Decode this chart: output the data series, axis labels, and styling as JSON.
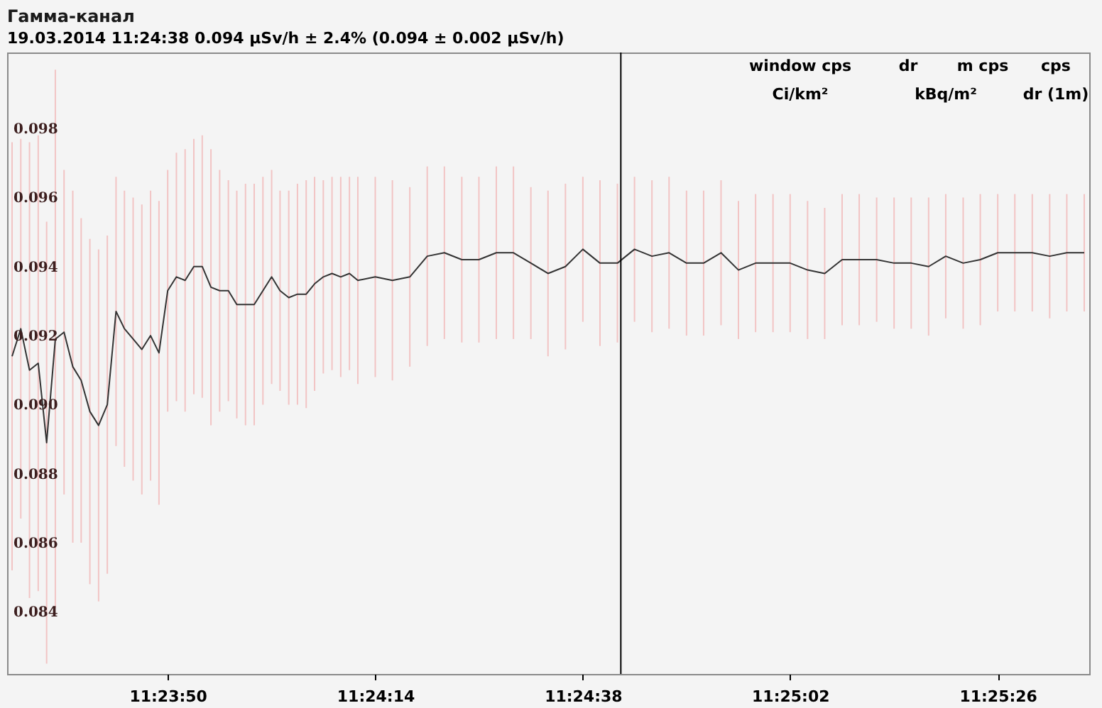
{
  "chart_data": {
    "type": "line",
    "title": "Гамма-канал",
    "subtitle": "19.03.2014 11:24:38    0.094 µSv/h ± 2.4%    (0.094 ± 0.002 µSv/h)",
    "annotations": [
      "window cps",
      "dr",
      "m cps",
      "cps",
      "Ci/km²",
      "kBq/m²",
      "dr (1m)"
    ],
    "x": [
      11.39222,
      11.3925,
      11.39278,
      11.39306,
      11.39333,
      11.39361,
      11.39389,
      11.39417,
      11.39444,
      11.39472,
      11.395,
      11.39528,
      11.39556,
      11.39583,
      11.39611,
      11.39639,
      11.39667,
      11.39694,
      11.39722,
      11.3975,
      11.39778,
      11.39806,
      11.39833,
      11.39861,
      11.39889,
      11.39917,
      11.39944,
      11.39972,
      11.4,
      11.40028,
      11.40056,
      11.40083,
      11.40111,
      11.40139,
      11.40167,
      11.40194,
      11.40222,
      11.4025,
      11.40278,
      11.40306,
      11.40333,
      11.40389,
      11.40444,
      11.405,
      11.40556,
      11.40611,
      11.40667,
      11.40722,
      11.40778,
      11.40833,
      11.40889,
      11.40944,
      11.41,
      11.41056,
      11.41111,
      11.41167,
      11.41222,
      11.41278,
      11.41333,
      11.41389,
      11.41444,
      11.415,
      11.41556,
      11.41611,
      11.41667,
      11.41722,
      11.41778,
      11.41833,
      11.41889,
      11.41944,
      11.42,
      11.42056,
      11.42111,
      11.42167,
      11.42222,
      11.42278,
      11.42333,
      11.42389,
      11.42444,
      11.425,
      11.42556,
      11.42611,
      11.42667
    ],
    "series": [
      {
        "color": "#333333",
        "values": [
          0.0914,
          0.0922,
          0.091,
          0.0912,
          0.0889,
          0.0919,
          0.0921,
          0.0911,
          0.0907,
          0.0898,
          0.0894,
          0.09,
          0.0927,
          0.0922,
          0.0919,
          0.0916,
          0.092,
          0.0915,
          0.0933,
          0.0937,
          0.0936,
          0.094,
          0.094,
          0.0934,
          0.0933,
          0.0933,
          0.0929,
          0.0929,
          0.0929,
          0.0933,
          0.0937,
          0.0933,
          0.0931,
          0.0932,
          0.0932,
          0.0935,
          0.0937,
          0.0938,
          0.0937,
          0.0938,
          0.0936,
          0.0937,
          0.0936,
          0.0937,
          0.0943,
          0.0944,
          0.0942,
          0.0942,
          0.0944,
          0.0944,
          0.0941,
          0.0938,
          0.094,
          0.0945,
          0.0941,
          0.0941,
          0.0945,
          0.0943,
          0.0944,
          0.0941,
          0.0941,
          0.0944,
          0.0939,
          0.0941,
          0.0941,
          0.0941,
          0.0939,
          0.0938,
          0.0942,
          0.0942,
          0.0942,
          0.0941,
          0.0941,
          0.094,
          0.0943,
          0.0941,
          0.0942,
          0.0944,
          0.0944,
          0.0944,
          0.0943,
          0.0944,
          0.0944
        ],
        "errors": [
          0.0062,
          0.0055,
          0.0066,
          0.0066,
          0.0064,
          0.0078,
          0.0047,
          0.0051,
          0.0047,
          0.005,
          0.0051,
          0.0049,
          0.0039,
          0.004,
          0.0041,
          0.0042,
          0.0042,
          0.0044,
          0.0035,
          0.0036,
          0.0038,
          0.0037,
          0.0038,
          0.004,
          0.0035,
          0.0032,
          0.0033,
          0.0035,
          0.0035,
          0.0033,
          0.0031,
          0.0029,
          0.0031,
          0.0032,
          0.0033,
          0.0031,
          0.0028,
          0.0028,
          0.0029,
          0.0028,
          0.003,
          0.0029,
          0.0029,
          0.0026,
          0.0026,
          0.0025,
          0.0024,
          0.0024,
          0.0025,
          0.0025,
          0.0022,
          0.0024,
          0.0024,
          0.0021,
          0.0024,
          0.0023,
          0.0021,
          0.0022,
          0.0022,
          0.0021,
          0.0021,
          0.0021,
          0.002,
          0.002,
          0.002,
          0.002,
          0.002,
          0.0019,
          0.0019,
          0.0019,
          0.0018,
          0.0019,
          0.0019,
          0.002,
          0.0018,
          0.0019,
          0.0019,
          0.0017,
          0.0017,
          0.0017,
          0.0018,
          0.0017,
          0.0017
        ]
      }
    ],
    "xlim": [
      11.39206,
      11.42683
    ],
    "xticks": [
      {
        "value": 11.39722,
        "label": "11:23:50"
      },
      {
        "value": 11.40389,
        "label": "11:24:14"
      },
      {
        "value": 11.41056,
        "label": "11:24:38"
      },
      {
        "value": 11.41722,
        "label": "11:25:02"
      },
      {
        "value": 11.42389,
        "label": "11:25:26"
      }
    ],
    "ylim": [
      0.0822,
      0.1002
    ],
    "yticks": [
      0.084,
      0.086,
      0.088,
      {
        "value": 0.09,
        "label": "0.090"
      },
      0.092,
      0.094,
      0.096,
      0.098
    ],
    "ref_lines": [
      {
        "axis": "x",
        "value": 11.41178,
        "color": "#000000"
      }
    ],
    "grid": false,
    "marker": "none",
    "line_style": "solid"
  }
}
